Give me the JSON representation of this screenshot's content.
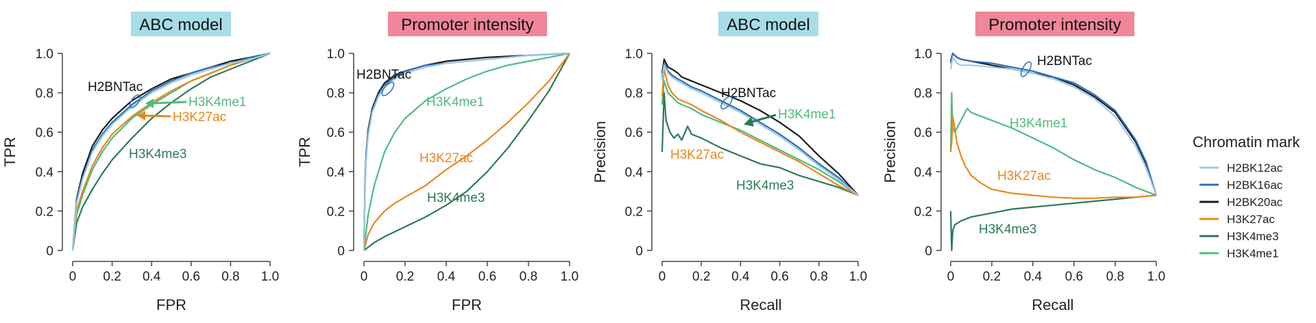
{
  "chart_data": [
    {
      "type": "line",
      "title": "ABC model",
      "title_color": "#a6dde6",
      "xlabel": "FPR",
      "ylabel": "TPR",
      "xlim": [
        0,
        1
      ],
      "ylim": [
        0,
        1
      ],
      "xticks": [
        "0",
        "0.2",
        "0.4",
        "0.6",
        "0.8",
        "1.0"
      ],
      "yticks": [
        "0",
        "0.2",
        "0.4",
        "0.6",
        "0.8",
        "1.0"
      ],
      "series": [
        {
          "name": "H2BK12ac",
          "x": [
            0,
            0.02,
            0.05,
            0.1,
            0.15,
            0.2,
            0.3,
            0.4,
            0.5,
            0.6,
            0.7,
            0.8,
            0.9,
            1.0
          ],
          "y": [
            0,
            0.24,
            0.36,
            0.5,
            0.58,
            0.64,
            0.73,
            0.8,
            0.85,
            0.89,
            0.92,
            0.95,
            0.97,
            1.0
          ]
        },
        {
          "name": "H2BK16ac",
          "x": [
            0,
            0.02,
            0.05,
            0.1,
            0.15,
            0.2,
            0.3,
            0.4,
            0.5,
            0.6,
            0.7,
            0.8,
            0.9,
            1.0
          ],
          "y": [
            0,
            0.25,
            0.37,
            0.51,
            0.59,
            0.65,
            0.74,
            0.81,
            0.86,
            0.9,
            0.93,
            0.95,
            0.98,
            1.0
          ]
        },
        {
          "name": "H2BK20ac",
          "x": [
            0,
            0.02,
            0.05,
            0.1,
            0.15,
            0.2,
            0.3,
            0.4,
            0.5,
            0.6,
            0.7,
            0.8,
            0.9,
            1.0
          ],
          "y": [
            0,
            0.26,
            0.39,
            0.53,
            0.61,
            0.67,
            0.76,
            0.82,
            0.87,
            0.9,
            0.93,
            0.96,
            0.98,
            1.0
          ]
        },
        {
          "name": "H3K27ac",
          "x": [
            0,
            0.02,
            0.05,
            0.1,
            0.15,
            0.2,
            0.3,
            0.4,
            0.5,
            0.6,
            0.7,
            0.8,
            0.9,
            1.0
          ],
          "y": [
            0,
            0.2,
            0.3,
            0.43,
            0.52,
            0.59,
            0.68,
            0.75,
            0.81,
            0.86,
            0.9,
            0.94,
            0.97,
            1.0
          ]
        },
        {
          "name": "H3K4me3",
          "x": [
            0,
            0.02,
            0.05,
            0.1,
            0.15,
            0.2,
            0.3,
            0.4,
            0.5,
            0.6,
            0.7,
            0.8,
            0.9,
            1.0
          ],
          "y": [
            0,
            0.14,
            0.22,
            0.31,
            0.39,
            0.46,
            0.57,
            0.67,
            0.75,
            0.82,
            0.88,
            0.92,
            0.96,
            1.0
          ]
        },
        {
          "name": "H3K4me1",
          "x": [
            0,
            0.02,
            0.05,
            0.1,
            0.15,
            0.2,
            0.3,
            0.4,
            0.5,
            0.6,
            0.7,
            0.8,
            0.9,
            1.0
          ],
          "y": [
            0,
            0.18,
            0.28,
            0.41,
            0.5,
            0.57,
            0.67,
            0.74,
            0.8,
            0.86,
            0.9,
            0.94,
            0.97,
            1.0
          ]
        }
      ],
      "annotations": [
        {
          "text": "H2BNTac",
          "color": "#111111"
        },
        {
          "text": "H3K4me1",
          "color": "#4dbb7f"
        },
        {
          "text": "H3K27ac",
          "color": "#e8871e"
        },
        {
          "text": "H3K4me3",
          "color": "#2a7a52"
        }
      ]
    },
    {
      "type": "line",
      "title": "Promoter intensity",
      "title_color": "#f0869a",
      "xlabel": "FPR",
      "ylabel": "TPR",
      "xlim": [
        0,
        1
      ],
      "ylim": [
        0,
        1
      ],
      "xticks": [
        "0",
        "0.2",
        "0.4",
        "0.6",
        "0.8",
        "1.0"
      ],
      "yticks": [
        "0",
        "0.2",
        "0.4",
        "0.6",
        "0.8",
        "1.0"
      ],
      "series": [
        {
          "name": "H2BK12ac",
          "x": [
            0,
            0.005,
            0.01,
            0.02,
            0.04,
            0.07,
            0.1,
            0.15,
            0.2,
            0.3,
            0.4,
            0.5,
            0.6,
            0.7,
            0.8,
            0.9,
            1.0
          ],
          "y": [
            0,
            0.3,
            0.45,
            0.58,
            0.7,
            0.78,
            0.83,
            0.87,
            0.9,
            0.93,
            0.95,
            0.96,
            0.97,
            0.98,
            0.99,
            0.995,
            1.0
          ]
        },
        {
          "name": "H2BK16ac",
          "x": [
            0,
            0.005,
            0.01,
            0.02,
            0.04,
            0.07,
            0.1,
            0.15,
            0.2,
            0.3,
            0.4,
            0.5,
            0.6,
            0.7,
            0.8,
            0.9,
            1.0
          ],
          "y": [
            0,
            0.32,
            0.47,
            0.6,
            0.71,
            0.79,
            0.84,
            0.88,
            0.91,
            0.94,
            0.95,
            0.96,
            0.97,
            0.98,
            0.99,
            0.995,
            1.0
          ]
        },
        {
          "name": "H2BK20ac",
          "x": [
            0,
            0.005,
            0.01,
            0.02,
            0.04,
            0.07,
            0.1,
            0.15,
            0.2,
            0.3,
            0.4,
            0.5,
            0.6,
            0.7,
            0.8,
            0.9,
            1.0
          ],
          "y": [
            0,
            0.33,
            0.48,
            0.61,
            0.72,
            0.8,
            0.85,
            0.89,
            0.91,
            0.94,
            0.96,
            0.97,
            0.98,
            0.985,
            0.99,
            0.995,
            1.0
          ]
        },
        {
          "name": "H3K27ac",
          "x": [
            0,
            0.02,
            0.05,
            0.1,
            0.15,
            0.2,
            0.3,
            0.4,
            0.5,
            0.6,
            0.7,
            0.8,
            0.9,
            1.0
          ],
          "y": [
            0,
            0.08,
            0.14,
            0.2,
            0.24,
            0.27,
            0.33,
            0.41,
            0.48,
            0.56,
            0.65,
            0.75,
            0.86,
            1.0
          ]
        },
        {
          "name": "H3K4me3",
          "x": [
            0,
            0.05,
            0.1,
            0.2,
            0.3,
            0.4,
            0.5,
            0.6,
            0.7,
            0.8,
            0.9,
            1.0
          ],
          "y": [
            0,
            0.04,
            0.07,
            0.12,
            0.17,
            0.23,
            0.3,
            0.4,
            0.52,
            0.66,
            0.81,
            1.0
          ]
        },
        {
          "name": "H3K4me1",
          "x": [
            0,
            0.02,
            0.05,
            0.1,
            0.15,
            0.2,
            0.3,
            0.4,
            0.5,
            0.6,
            0.7,
            0.8,
            0.9,
            1.0
          ],
          "y": [
            0,
            0.18,
            0.33,
            0.5,
            0.6,
            0.67,
            0.76,
            0.82,
            0.87,
            0.91,
            0.94,
            0.96,
            0.98,
            1.0
          ]
        }
      ],
      "annotations": [
        {
          "text": "H2BNTac",
          "color": "#111111"
        },
        {
          "text": "H3K4me1",
          "color": "#4dbb7f"
        },
        {
          "text": "H3K27ac",
          "color": "#e8871e"
        },
        {
          "text": "H3K4me3",
          "color": "#2a7a52"
        }
      ]
    },
    {
      "type": "line",
      "title": "ABC model",
      "title_color": "#a6dde6",
      "xlabel": "Recall",
      "ylabel": "Precision",
      "xlim": [
        0,
        1
      ],
      "ylim": [
        0,
        1
      ],
      "xticks": [
        "0",
        "0.2",
        "0.4",
        "0.6",
        "0.8",
        "1.0"
      ],
      "yticks": [
        "0",
        "0.2",
        "0.4",
        "0.6",
        "0.8",
        "1.0"
      ],
      "series": [
        {
          "name": "H2BK12ac",
          "x": [
            0,
            0.01,
            0.03,
            0.05,
            0.08,
            0.1,
            0.15,
            0.2,
            0.3,
            0.4,
            0.5,
            0.6,
            0.7,
            0.8,
            0.9,
            1.0
          ],
          "y": [
            0.86,
            0.94,
            0.9,
            0.88,
            0.86,
            0.85,
            0.82,
            0.8,
            0.75,
            0.7,
            0.64,
            0.58,
            0.51,
            0.43,
            0.36,
            0.28
          ]
        },
        {
          "name": "H2BK16ac",
          "x": [
            0,
            0.01,
            0.03,
            0.05,
            0.08,
            0.1,
            0.15,
            0.2,
            0.3,
            0.4,
            0.5,
            0.6,
            0.7,
            0.8,
            0.9,
            1.0
          ],
          "y": [
            0.88,
            0.95,
            0.91,
            0.89,
            0.87,
            0.86,
            0.83,
            0.81,
            0.76,
            0.71,
            0.65,
            0.59,
            0.52,
            0.44,
            0.37,
            0.28
          ]
        },
        {
          "name": "H2BK20ac",
          "x": [
            0,
            0.01,
            0.03,
            0.05,
            0.08,
            0.1,
            0.15,
            0.2,
            0.3,
            0.4,
            0.5,
            0.6,
            0.7,
            0.8,
            0.9,
            1.0
          ],
          "y": [
            0.9,
            0.97,
            0.93,
            0.92,
            0.9,
            0.88,
            0.86,
            0.84,
            0.8,
            0.76,
            0.71,
            0.65,
            0.58,
            0.48,
            0.39,
            0.28
          ]
        },
        {
          "name": "H3K27ac",
          "x": [
            0,
            0.01,
            0.03,
            0.05,
            0.08,
            0.1,
            0.15,
            0.2,
            0.3,
            0.4,
            0.5,
            0.6,
            0.7,
            0.8,
            0.9,
            1.0
          ],
          "y": [
            0.78,
            0.92,
            0.84,
            0.8,
            0.77,
            0.76,
            0.74,
            0.71,
            0.66,
            0.6,
            0.55,
            0.5,
            0.45,
            0.39,
            0.33,
            0.28
          ]
        },
        {
          "name": "H3K4me3",
          "x": [
            0,
            0.01,
            0.02,
            0.04,
            0.06,
            0.08,
            0.1,
            0.13,
            0.15,
            0.2,
            0.3,
            0.4,
            0.5,
            0.6,
            0.7,
            0.8,
            0.9,
            1.0
          ],
          "y": [
            0.5,
            0.8,
            0.66,
            0.6,
            0.57,
            0.59,
            0.56,
            0.63,
            0.59,
            0.57,
            0.52,
            0.48,
            0.44,
            0.42,
            0.38,
            0.35,
            0.32,
            0.28
          ]
        },
        {
          "name": "H3K4me1",
          "x": [
            0,
            0.01,
            0.03,
            0.05,
            0.08,
            0.1,
            0.15,
            0.2,
            0.3,
            0.4,
            0.5,
            0.6,
            0.7,
            0.8,
            0.9,
            1.0
          ],
          "y": [
            0.74,
            0.86,
            0.8,
            0.78,
            0.75,
            0.74,
            0.72,
            0.69,
            0.65,
            0.61,
            0.56,
            0.51,
            0.46,
            0.41,
            0.35,
            0.28
          ]
        }
      ],
      "annotations": [
        {
          "text": "H2BNTac",
          "color": "#111111"
        },
        {
          "text": "H3K4me1",
          "color": "#4dbb7f"
        },
        {
          "text": "H3K27ac",
          "color": "#e8871e"
        },
        {
          "text": "H3K4me3",
          "color": "#2a7a52"
        }
      ]
    },
    {
      "type": "line",
      "title": "Promoter intensity",
      "title_color": "#f0869a",
      "xlabel": "Recall",
      "ylabel": "Precision",
      "xlim": [
        0,
        1
      ],
      "ylim": [
        0,
        1
      ],
      "xticks": [
        "0",
        "0.2",
        "0.4",
        "0.6",
        "0.8",
        "1.0"
      ],
      "yticks": [
        "0",
        "0.2",
        "0.4",
        "0.6",
        "0.8",
        "1.0"
      ],
      "series": [
        {
          "name": "H2BK12ac",
          "x": [
            0,
            0.01,
            0.03,
            0.05,
            0.1,
            0.2,
            0.3,
            0.4,
            0.5,
            0.6,
            0.7,
            0.8,
            0.9,
            0.95,
            1.0
          ],
          "y": [
            0.92,
            0.98,
            0.95,
            0.94,
            0.94,
            0.93,
            0.92,
            0.9,
            0.87,
            0.83,
            0.77,
            0.68,
            0.53,
            0.42,
            0.28
          ]
        },
        {
          "name": "H2BK16ac",
          "x": [
            0,
            0.01,
            0.03,
            0.05,
            0.1,
            0.2,
            0.3,
            0.4,
            0.5,
            0.6,
            0.7,
            0.8,
            0.9,
            0.95,
            1.0
          ],
          "y": [
            0.95,
            1.0,
            0.98,
            0.97,
            0.96,
            0.95,
            0.93,
            0.91,
            0.88,
            0.85,
            0.79,
            0.71,
            0.56,
            0.45,
            0.28
          ]
        },
        {
          "name": "H2BK20ac",
          "x": [
            0,
            0.01,
            0.03,
            0.05,
            0.1,
            0.2,
            0.3,
            0.4,
            0.5,
            0.6,
            0.7,
            0.8,
            0.9,
            0.95,
            1.0
          ],
          "y": [
            0.96,
            1.0,
            0.98,
            0.97,
            0.96,
            0.94,
            0.92,
            0.9,
            0.88,
            0.84,
            0.78,
            0.7,
            0.55,
            0.44,
            0.28
          ]
        },
        {
          "name": "H3K27ac",
          "x": [
            0,
            0.005,
            0.01,
            0.02,
            0.03,
            0.05,
            0.07,
            0.1,
            0.15,
            0.2,
            0.3,
            0.4,
            0.5,
            0.6,
            0.7,
            0.8,
            0.9,
            1.0
          ],
          "y": [
            0.5,
            0.55,
            0.68,
            0.62,
            0.55,
            0.48,
            0.43,
            0.38,
            0.34,
            0.31,
            0.29,
            0.28,
            0.27,
            0.265,
            0.265,
            0.27,
            0.27,
            0.28
          ]
        },
        {
          "name": "H3K4me3",
          "x": [
            0,
            0.005,
            0.01,
            0.02,
            0.05,
            0.1,
            0.2,
            0.3,
            0.4,
            0.5,
            0.6,
            0.7,
            0.8,
            0.9,
            1.0
          ],
          "y": [
            0.2,
            0.0,
            0.1,
            0.13,
            0.15,
            0.17,
            0.19,
            0.21,
            0.22,
            0.23,
            0.24,
            0.25,
            0.26,
            0.27,
            0.28
          ]
        },
        {
          "name": "H3K4me1",
          "x": [
            0,
            0.005,
            0.01,
            0.02,
            0.05,
            0.08,
            0.1,
            0.15,
            0.2,
            0.3,
            0.4,
            0.5,
            0.6,
            0.7,
            0.8,
            0.9,
            1.0
          ],
          "y": [
            0.5,
            0.8,
            0.62,
            0.6,
            0.66,
            0.72,
            0.7,
            0.68,
            0.66,
            0.62,
            0.57,
            0.52,
            0.46,
            0.41,
            0.37,
            0.32,
            0.28
          ]
        }
      ],
      "annotations": [
        {
          "text": "H2BNTac",
          "color": "#111111"
        },
        {
          "text": "H3K4me1",
          "color": "#4dbb7f"
        },
        {
          "text": "H3K27ac",
          "color": "#e8871e"
        },
        {
          "text": "H3K4me3",
          "color": "#2a7a52"
        }
      ]
    }
  ],
  "legend": {
    "title": "Chromatin mark",
    "items": [
      {
        "name": "H2BK12ac",
        "color": "#9cc8e8"
      },
      {
        "name": "H2BK16ac",
        "color": "#2c6fb5"
      },
      {
        "name": "H2BK20ac",
        "color": "#1a1a1a"
      },
      {
        "name": "H3K27ac",
        "color": "#e8871e"
      },
      {
        "name": "H3K4me3",
        "color": "#2a7a52"
      },
      {
        "name": "H3K4me1",
        "color": "#4dbb7f"
      }
    ]
  }
}
